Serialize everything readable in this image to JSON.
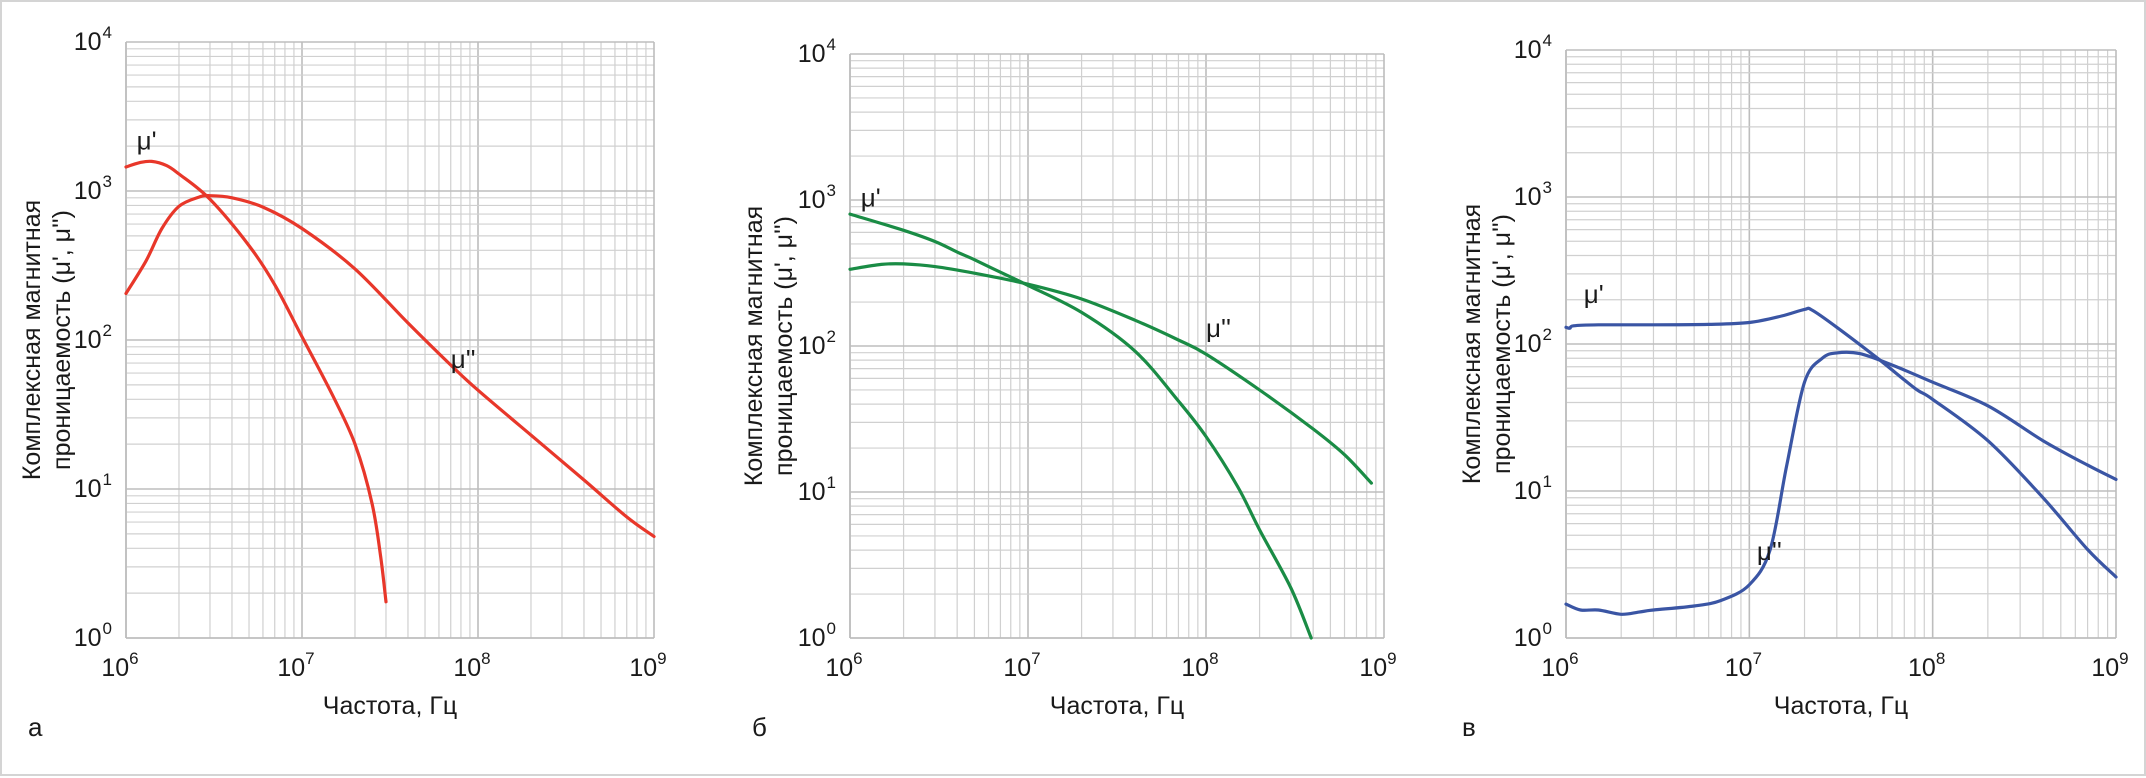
{
  "chart_data": [
    {
      "type": "line",
      "panel_label": "а",
      "xlabel": "Частота, Гц",
      "ylabel": [
        "Комплексная магнитная",
        "проницаемость (μ', μ'')"
      ],
      "xscale": "log",
      "yscale": "log",
      "xlim": [
        1000000,
        1000000000
      ],
      "ylim": [
        1,
        10000
      ],
      "x_ticks": [
        1000000,
        10000000,
        100000000,
        1000000000
      ],
      "y_ticks": [
        1,
        10,
        100,
        1000,
        10000
      ],
      "grid": true,
      "color": "#e8372a",
      "series": [
        {
          "name": "μ'",
          "points": [
            [
              1000000,
              1450
            ],
            [
              1200000,
              1550
            ],
            [
              1400000,
              1580
            ],
            [
              1700000,
              1480
            ],
            [
              2000000,
              1300
            ],
            [
              3000000,
              880
            ],
            [
              5000000,
              430
            ],
            [
              7000000,
              235
            ],
            [
              10000000,
              105
            ],
            [
              15000000,
              42
            ],
            [
              20000000,
              20
            ],
            [
              25000000,
              8
            ],
            [
              28000000,
              3.5
            ],
            [
              30000000,
              1.75
            ]
          ]
        },
        {
          "name": "μ''",
          "points": [
            [
              1000000,
              205
            ],
            [
              1300000,
              340
            ],
            [
              1600000,
              560
            ],
            [
              2000000,
              790
            ],
            [
              2600000,
              910
            ],
            [
              3000000,
              930
            ],
            [
              4000000,
              900
            ],
            [
              6000000,
              780
            ],
            [
              10000000,
              560
            ],
            [
              20000000,
              300
            ],
            [
              40000000,
              130
            ],
            [
              70000000,
              68
            ],
            [
              100000000,
              46
            ],
            [
              200000000,
              23
            ],
            [
              400000000,
              11.5
            ],
            [
              700000000,
              6.5
            ],
            [
              1000000000,
              4.8
            ]
          ]
        }
      ],
      "annotations": [
        {
          "text": "μ'",
          "x": 1150000,
          "y": 1900
        },
        {
          "text": "μ''",
          "x": 70000000,
          "y": 65
        }
      ]
    },
    {
      "type": "line",
      "panel_label": "б",
      "xlabel": "Частота, Гц",
      "ylabel": [
        "Комплексная магнитная",
        "проницаемость (μ', μ'')"
      ],
      "xscale": "log",
      "yscale": "log",
      "xlim": [
        1000000,
        1000000000
      ],
      "ylim": [
        1,
        10000
      ],
      "x_ticks": [
        1000000,
        10000000,
        100000000,
        1000000000
      ],
      "y_ticks": [
        1,
        10,
        100,
        1000,
        10000
      ],
      "grid": true,
      "color": "#1a8c45",
      "series": [
        {
          "name": "μ'",
          "points": [
            [
              1000000,
              800
            ],
            [
              2000000,
              620
            ],
            [
              3000000,
              520
            ],
            [
              4000000,
              440
            ],
            [
              5000000,
              390
            ],
            [
              7000000,
              320
            ],
            [
              10000000,
              260
            ],
            [
              20000000,
              170
            ],
            [
              40000000,
              92
            ],
            [
              70000000,
              42
            ],
            [
              100000000,
              24
            ],
            [
              150000000,
              11
            ],
            [
              200000000,
              5.5
            ],
            [
              300000000,
              2.2
            ],
            [
              390000000,
              1.0
            ]
          ]
        },
        {
          "name": "μ''",
          "points": [
            [
              1000000,
              335
            ],
            [
              1500000,
              362
            ],
            [
              2000000,
              365
            ],
            [
              3000000,
              350
            ],
            [
              5000000,
              315
            ],
            [
              10000000,
              265
            ],
            [
              20000000,
              210
            ],
            [
              40000000,
              150
            ],
            [
              70000000,
              110
            ],
            [
              100000000,
              88
            ],
            [
              200000000,
              50
            ],
            [
              400000000,
              27
            ],
            [
              600000000,
              18
            ],
            [
              850000000,
              11.5
            ]
          ]
        }
      ],
      "annotations": [
        {
          "text": "μ'",
          "x": 1150000,
          "y": 900
        },
        {
          "text": "μ''",
          "x": 100000000,
          "y": 115
        }
      ]
    },
    {
      "type": "line",
      "panel_label": "в",
      "xlabel": "Частота, Гц",
      "ylabel": [
        "Комплексная магнитная",
        "проницаемость (μ', μ'')"
      ],
      "xscale": "log",
      "yscale": "log",
      "xlim": [
        1000000,
        1000000000
      ],
      "ylim": [
        1,
        10000
      ],
      "x_ticks": [
        1000000,
        10000000,
        100000000,
        1000000000
      ],
      "y_ticks": [
        1,
        10,
        100,
        1000,
        10000
      ],
      "grid": true,
      "color": "#3a55a4",
      "series": [
        {
          "name": "μ'",
          "points": [
            [
              1000000,
              130
            ],
            [
              1050000,
              128
            ],
            [
              1100000,
              133
            ],
            [
              1500000,
              135
            ],
            [
              3000000,
              135
            ],
            [
              6000000,
              136
            ],
            [
              10000000,
              140
            ],
            [
              15000000,
              155
            ],
            [
              20000000,
              172
            ],
            [
              22000000,
              170
            ],
            [
              30000000,
              130
            ],
            [
              50000000,
              80
            ],
            [
              80000000,
              50
            ],
            [
              100000000,
              42
            ],
            [
              200000000,
              22
            ],
            [
              400000000,
              9
            ],
            [
              700000000,
              4
            ],
            [
              1000000000,
              2.6
            ]
          ]
        },
        {
          "name": "μ''",
          "points": [
            [
              1000000,
              1.7
            ],
            [
              1200000,
              1.55
            ],
            [
              1500000,
              1.55
            ],
            [
              2000000,
              1.45
            ],
            [
              2500000,
              1.5
            ],
            [
              3000000,
              1.55
            ],
            [
              5000000,
              1.65
            ],
            [
              7000000,
              1.8
            ],
            [
              10000000,
              2.3
            ],
            [
              13000000,
              4
            ],
            [
              16000000,
              15
            ],
            [
              20000000,
              55
            ],
            [
              25000000,
              80
            ],
            [
              30000000,
              87
            ],
            [
              40000000,
              86
            ],
            [
              60000000,
              72
            ],
            [
              100000000,
              55
            ],
            [
              200000000,
              38
            ],
            [
              400000000,
              22
            ],
            [
              700000000,
              15
            ],
            [
              1000000000,
              12
            ]
          ]
        }
      ],
      "annotations": [
        {
          "text": "μ'",
          "x": 1250000,
          "y": 190
        },
        {
          "text": "μ''",
          "x": 11000000,
          "y": 3.4
        }
      ]
    }
  ]
}
